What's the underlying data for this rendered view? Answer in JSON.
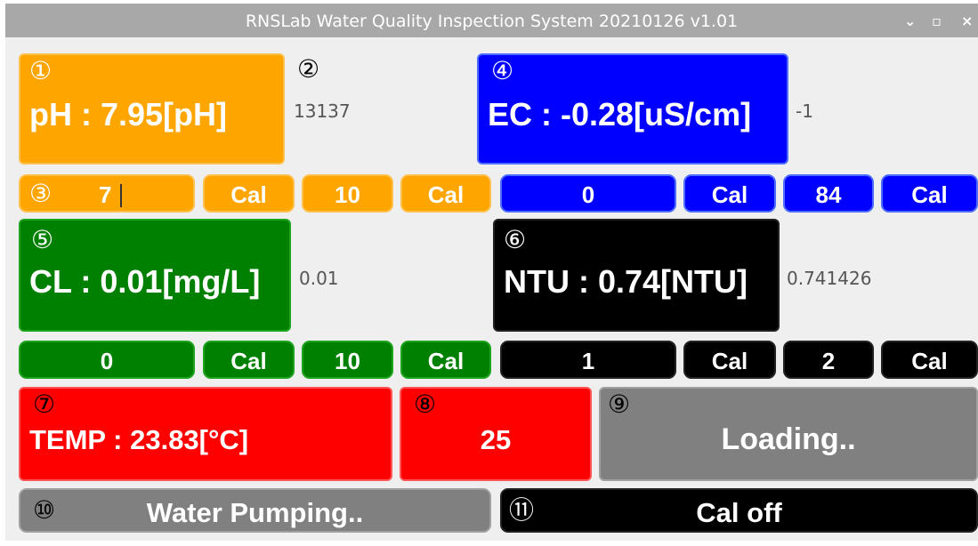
{
  "window": {
    "title": "RNSLab Water Quality Inspection System 20210126 v1.01",
    "buttons": {
      "minimize": "⌄",
      "maximize": "▫",
      "close": "×"
    }
  },
  "markers": {
    "m1": "①",
    "m2": "②",
    "m3": "③",
    "m4": "④",
    "m5": "⑤",
    "m6": "⑥",
    "m7": "⑦",
    "m8": "⑧",
    "m9": "⑨",
    "m10": "⑩",
    "m11": "⑪"
  },
  "ph": {
    "display": "pH : 7.95[pH]",
    "raw": "13137",
    "input_value": "7",
    "cal": "Cal",
    "point2": "10",
    "cal2": "Cal"
  },
  "ec": {
    "display": "EC : -0.28[uS/cm]",
    "raw": "-1",
    "point1": "0",
    "cal1": "Cal",
    "point2": "84",
    "cal2": "Cal"
  },
  "cl": {
    "display": "CL : 0.01[mg/L]",
    "raw": "0.01",
    "point1": "0",
    "cal1": "Cal",
    "point2": "10",
    "cal2": "Cal"
  },
  "ntu": {
    "display": "NTU : 0.74[NTU]",
    "raw": "0.741426",
    "point1": "1",
    "cal1": "Cal",
    "point2": "2",
    "cal2": "Cal"
  },
  "temp": {
    "display": "TEMP : 23.83[°C]",
    "setpoint": "25"
  },
  "status": {
    "loading": "Loading..",
    "pump": "Water Pumping..",
    "cal_state": "Cal off"
  },
  "colors": {
    "orange": "#ffa500",
    "blue": "#0000ff",
    "green": "#008000",
    "black": "#000000",
    "red": "#ff0000",
    "gray": "#808080",
    "window_bg": "#efefef",
    "titlebar": "#a8a8a8"
  }
}
